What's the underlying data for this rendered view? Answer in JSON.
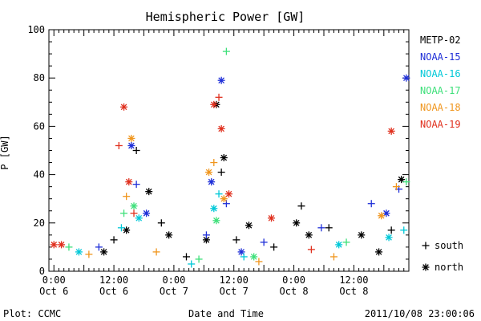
{
  "chart_data": {
    "type": "scatter",
    "title": "Hemispheric Power [GW]",
    "ylabel": "P [GW]",
    "xlabel": "Date and Time",
    "ylim": [
      0,
      100
    ],
    "yticks": [
      0,
      20,
      40,
      60,
      80,
      100
    ],
    "xlim": [
      "2011-10-05T23:00",
      "2011-10-08T23:00"
    ],
    "xticks": [
      {
        "time": "2011-10-06T00:00",
        "line1": "0:00",
        "line2": "Oct 6"
      },
      {
        "time": "2011-10-06T12:00",
        "line1": "12:00",
        "line2": "Oct 6"
      },
      {
        "time": "2011-10-07T00:00",
        "line1": "0:00",
        "line2": "Oct 7"
      },
      {
        "time": "2011-10-07T12:00",
        "line1": "12:00",
        "line2": "Oct 7"
      },
      {
        "time": "2011-10-08T00:00",
        "line1": "0:00",
        "line2": "Oct 8"
      },
      {
        "time": "2011-10-08T12:00",
        "line1": "12:00",
        "line2": "Oct 8"
      }
    ],
    "marker_legend": [
      {
        "symbol": "+",
        "label": "south"
      },
      {
        "symbol": "*",
        "label": "north"
      }
    ],
    "series": [
      {
        "name": "METP-02",
        "color": "#000000",
        "points": [
          {
            "t": "2011-10-06T10:00",
            "v": 8,
            "m": "north"
          },
          {
            "t": "2011-10-06T12:00",
            "v": 13,
            "m": "plus"
          },
          {
            "t": "2011-10-06T14:30",
            "v": 17,
            "m": "north"
          },
          {
            "t": "2011-10-06T16:30",
            "v": 50,
            "m": "plus"
          },
          {
            "t": "2011-10-06T19:00",
            "v": 33,
            "m": "north"
          },
          {
            "t": "2011-10-06T21:30",
            "v": 20,
            "m": "plus"
          },
          {
            "t": "2011-10-06T23:00",
            "v": 15,
            "m": "north"
          },
          {
            "t": "2011-10-07T02:30",
            "v": 6,
            "m": "plus"
          },
          {
            "t": "2011-10-07T06:30",
            "v": 13,
            "m": "north"
          },
          {
            "t": "2011-10-07T08:30",
            "v": 69,
            "m": "north"
          },
          {
            "t": "2011-10-07T09:30",
            "v": 41,
            "m": "plus"
          },
          {
            "t": "2011-10-07T10:00",
            "v": 47,
            "m": "north"
          },
          {
            "t": "2011-10-07T12:30",
            "v": 13,
            "m": "plus"
          },
          {
            "t": "2011-10-07T15:00",
            "v": 19,
            "m": "north"
          },
          {
            "t": "2011-10-07T20:00",
            "v": 10,
            "m": "plus"
          },
          {
            "t": "2011-10-08T00:30",
            "v": 20,
            "m": "north"
          },
          {
            "t": "2011-10-08T01:30",
            "v": 27,
            "m": "plus"
          },
          {
            "t": "2011-10-08T03:00",
            "v": 15,
            "m": "north"
          },
          {
            "t": "2011-10-08T07:00",
            "v": 18,
            "m": "plus"
          },
          {
            "t": "2011-10-08T13:30",
            "v": 15,
            "m": "north"
          },
          {
            "t": "2011-10-08T17:00",
            "v": 8,
            "m": "north"
          },
          {
            "t": "2011-10-08T19:30",
            "v": 17,
            "m": "plus"
          },
          {
            "t": "2011-10-08T21:30",
            "v": 38,
            "m": "north"
          }
        ]
      },
      {
        "name": "NOAA-15",
        "color": "#1f2fd8",
        "points": [
          {
            "t": "2011-10-06T09:00",
            "v": 10,
            "m": "plus"
          },
          {
            "t": "2011-10-06T15:30",
            "v": 52,
            "m": "north"
          },
          {
            "t": "2011-10-06T16:30",
            "v": 36,
            "m": "plus"
          },
          {
            "t": "2011-10-06T18:30",
            "v": 24,
            "m": "north"
          },
          {
            "t": "2011-10-07T06:30",
            "v": 15,
            "m": "plus"
          },
          {
            "t": "2011-10-07T07:30",
            "v": 37,
            "m": "north"
          },
          {
            "t": "2011-10-07T09:30",
            "v": 79,
            "m": "north"
          },
          {
            "t": "2011-10-07T10:30",
            "v": 28,
            "m": "plus"
          },
          {
            "t": "2011-10-07T13:30",
            "v": 8,
            "m": "north"
          },
          {
            "t": "2011-10-07T18:00",
            "v": 12,
            "m": "plus"
          },
          {
            "t": "2011-10-08T05:30",
            "v": 18,
            "m": "plus"
          },
          {
            "t": "2011-10-08T15:30",
            "v": 28,
            "m": "plus"
          },
          {
            "t": "2011-10-08T18:30",
            "v": 24,
            "m": "north"
          },
          {
            "t": "2011-10-08T21:00",
            "v": 34,
            "m": "plus"
          },
          {
            "t": "2011-10-08T22:30",
            "v": 80,
            "m": "north"
          }
        ]
      },
      {
        "name": "NOAA-16",
        "color": "#00c8d8",
        "points": [
          {
            "t": "2011-10-06T05:00",
            "v": 8,
            "m": "north"
          },
          {
            "t": "2011-10-06T13:30",
            "v": 18,
            "m": "plus"
          },
          {
            "t": "2011-10-06T17:00",
            "v": 22,
            "m": "north"
          },
          {
            "t": "2011-10-07T03:30",
            "v": 3,
            "m": "plus"
          },
          {
            "t": "2011-10-07T08:00",
            "v": 26,
            "m": "north"
          },
          {
            "t": "2011-10-07T09:00",
            "v": 32,
            "m": "plus"
          },
          {
            "t": "2011-10-07T14:00",
            "v": 6,
            "m": "plus"
          },
          {
            "t": "2011-10-08T09:00",
            "v": 11,
            "m": "north"
          },
          {
            "t": "2011-10-08T19:00",
            "v": 14,
            "m": "north"
          },
          {
            "t": "2011-10-08T22:00",
            "v": 17,
            "m": "plus"
          }
        ]
      },
      {
        "name": "NOAA-17",
        "color": "#3ee07a",
        "points": [
          {
            "t": "2011-10-06T03:00",
            "v": 10,
            "m": "plus"
          },
          {
            "t": "2011-10-06T14:00",
            "v": 24,
            "m": "plus"
          },
          {
            "t": "2011-10-06T16:00",
            "v": 27,
            "m": "north"
          },
          {
            "t": "2011-10-07T05:00",
            "v": 5,
            "m": "plus"
          },
          {
            "t": "2011-10-07T08:30",
            "v": 21,
            "m": "north"
          },
          {
            "t": "2011-10-07T10:30",
            "v": 91,
            "m": "plus"
          },
          {
            "t": "2011-10-07T16:00",
            "v": 6,
            "m": "north"
          },
          {
            "t": "2011-10-08T10:30",
            "v": 12,
            "m": "plus"
          },
          {
            "t": "2011-10-08T22:30",
            "v": 37,
            "m": "plus"
          }
        ]
      },
      {
        "name": "NOAA-18",
        "color": "#f0961e",
        "points": [
          {
            "t": "2011-10-06T07:00",
            "v": 7,
            "m": "plus"
          },
          {
            "t": "2011-10-06T14:30",
            "v": 31,
            "m": "plus"
          },
          {
            "t": "2011-10-06T15:30",
            "v": 55,
            "m": "north"
          },
          {
            "t": "2011-10-06T20:30",
            "v": 8,
            "m": "plus"
          },
          {
            "t": "2011-10-07T07:00",
            "v": 41,
            "m": "north"
          },
          {
            "t": "2011-10-07T08:00",
            "v": 45,
            "m": "plus"
          },
          {
            "t": "2011-10-07T10:00",
            "v": 30,
            "m": "north"
          },
          {
            "t": "2011-10-07T17:00",
            "v": 4,
            "m": "plus"
          },
          {
            "t": "2011-10-08T08:00",
            "v": 6,
            "m": "plus"
          },
          {
            "t": "2011-10-08T17:30",
            "v": 23,
            "m": "north"
          },
          {
            "t": "2011-10-08T20:30",
            "v": 35,
            "m": "plus"
          }
        ]
      },
      {
        "name": "NOAA-19",
        "color": "#e0301e",
        "points": [
          {
            "t": "2011-10-06T00:00",
            "v": 11,
            "m": "north"
          },
          {
            "t": "2011-10-06T01:30",
            "v": 11,
            "m": "north"
          },
          {
            "t": "2011-10-06T13:00",
            "v": 52,
            "m": "plus"
          },
          {
            "t": "2011-10-06T14:00",
            "v": 68,
            "m": "north"
          },
          {
            "t": "2011-10-06T15:00",
            "v": 37,
            "m": "north"
          },
          {
            "t": "2011-10-06T16:00",
            "v": 24,
            "m": "plus"
          },
          {
            "t": "2011-10-07T08:00",
            "v": 69,
            "m": "north"
          },
          {
            "t": "2011-10-07T09:00",
            "v": 72,
            "m": "plus"
          },
          {
            "t": "2011-10-07T09:30",
            "v": 59,
            "m": "north"
          },
          {
            "t": "2011-10-07T11:00",
            "v": 32,
            "m": "north"
          },
          {
            "t": "2011-10-07T19:30",
            "v": 22,
            "m": "north"
          },
          {
            "t": "2011-10-08T03:30",
            "v": 9,
            "m": "plus"
          },
          {
            "t": "2011-10-08T19:30",
            "v": 58,
            "m": "north"
          }
        ]
      }
    ]
  },
  "footer": {
    "left": "Plot: CCMC",
    "right": "2011/10/08 23:00:06"
  }
}
